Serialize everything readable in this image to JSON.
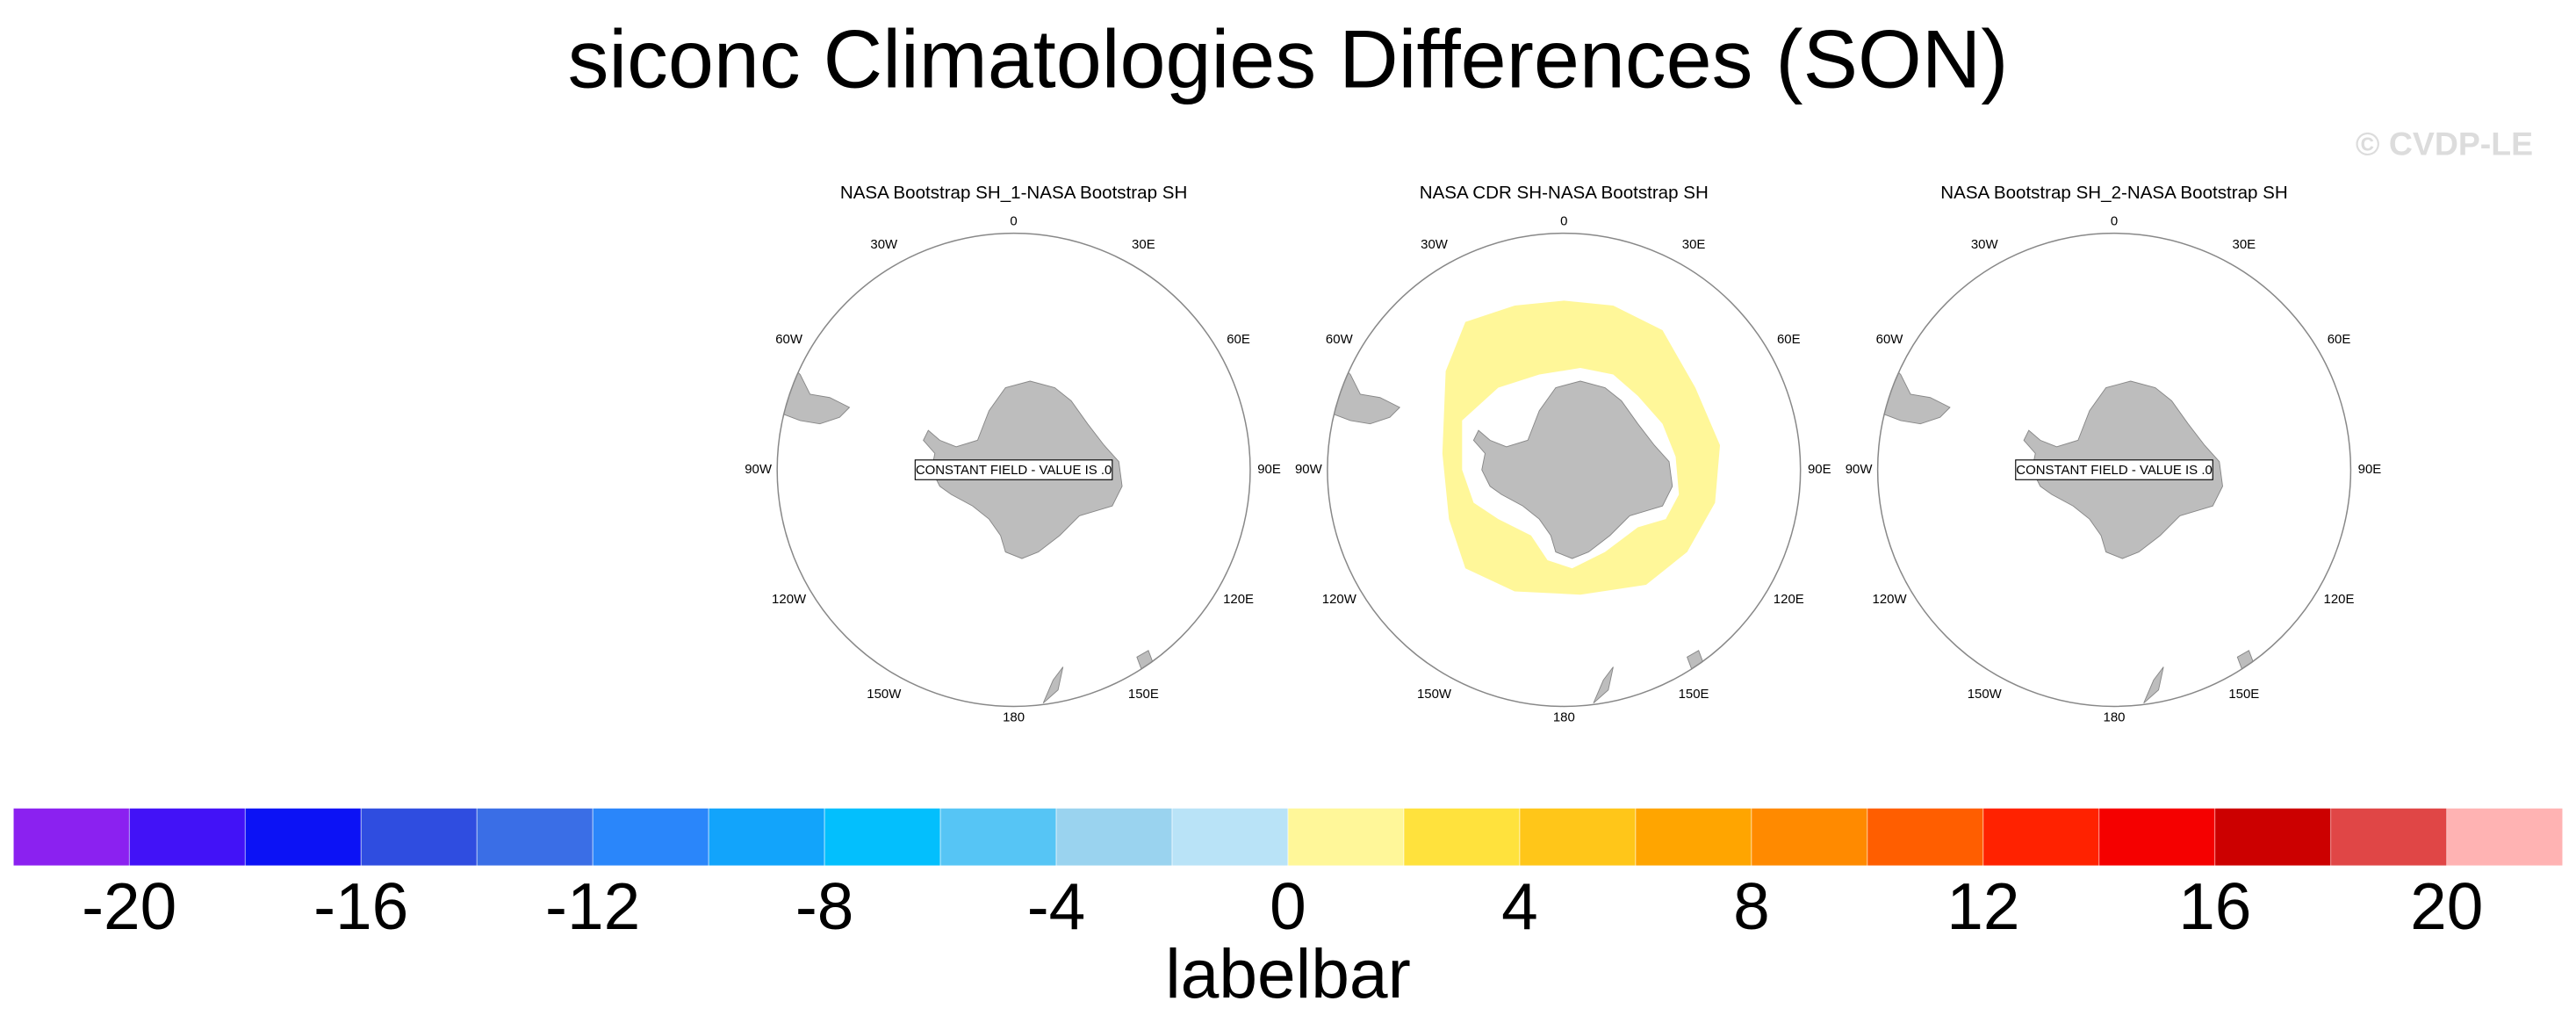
{
  "title": "siconc Climatologies Differences (SON)",
  "watermark": "© CVDP-LE",
  "panels": [
    {
      "title": "NASA Bootstrap SH_1-NASA Bootstrap SH",
      "note": "CONSTANT FIELD - VALUE IS .0"
    },
    {
      "title": "NASA CDR SH-NASA Bootstrap SH"
    },
    {
      "title": "NASA Bootstrap SH_2-NASA Bootstrap SH",
      "note": "CONSTANT FIELD - VALUE IS .0"
    }
  ],
  "longitude_labels": [
    "0",
    "30E",
    "60E",
    "90E",
    "120E",
    "150E",
    "180",
    "150W",
    "120W",
    "90W",
    "60W",
    "30W"
  ],
  "colorbar": {
    "title": "labelbar",
    "xlim": [
      -22,
      22
    ],
    "ticks": [
      -20,
      -16,
      -12,
      -8,
      -4,
      0,
      4,
      8,
      12,
      16,
      20
    ],
    "colors": [
      "#8b21f0",
      "#4212f7",
      "#0c12f5",
      "#2f4de0",
      "#3a6ee6",
      "#2a86fa",
      "#12a4fb",
      "#03bffd",
      "#56c5f5",
      "#9ad3ef",
      "#b9e3f7",
      "#fff799",
      "#ffe23d",
      "#ffc619",
      "#ffa500",
      "#ff8a00",
      "#ff5e00",
      "#ff2200",
      "#f50000",
      "#cc0000",
      "#e04646",
      "#ffb3b3"
    ]
  }
}
